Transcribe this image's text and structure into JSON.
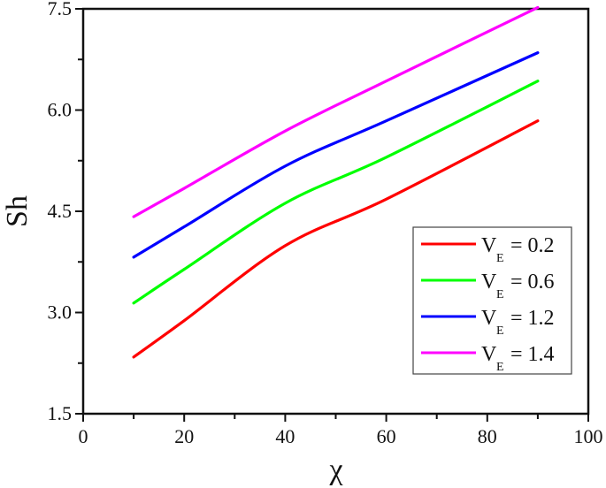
{
  "chart_data": {
    "type": "line",
    "title": "",
    "xlabel": "χ",
    "ylabel": "Sh",
    "xlim": [
      0,
      100
    ],
    "ylim": [
      1.5,
      7.5
    ],
    "xticks": [
      "0",
      "20",
      "40",
      "60",
      "80",
      "100"
    ],
    "yticks": [
      "1.5",
      "3.0",
      "4.5",
      "6.0",
      "7.5"
    ],
    "grid": false,
    "legend_position": "lower right (inside)",
    "x": [
      10,
      20,
      40,
      60,
      90
    ],
    "series": [
      {
        "name": "V_E = 0.2",
        "label_main": "V",
        "label_sub": "E",
        "label_value": "= 0.2",
        "color": "#ff0000",
        "values": [
          2.34,
          2.88,
          3.99,
          4.68,
          5.84
        ]
      },
      {
        "name": "V_E = 0.6",
        "label_main": "V",
        "label_sub": "E",
        "label_value": "= 0.6",
        "color": "#00ff00",
        "values": [
          3.14,
          3.64,
          4.62,
          5.3,
          6.43
        ]
      },
      {
        "name": "V_E = 1.2",
        "label_main": "V",
        "label_sub": "E",
        "label_value": "= 1.2",
        "color": "#0000ff",
        "values": [
          3.82,
          4.27,
          5.17,
          5.84,
          6.85
        ]
      },
      {
        "name": "V_E = 1.4",
        "label_main": "V",
        "label_sub": "E",
        "label_value": "= 1.4",
        "color": "#ff00ff",
        "values": [
          4.42,
          4.84,
          5.69,
          6.43,
          7.52
        ]
      }
    ]
  }
}
